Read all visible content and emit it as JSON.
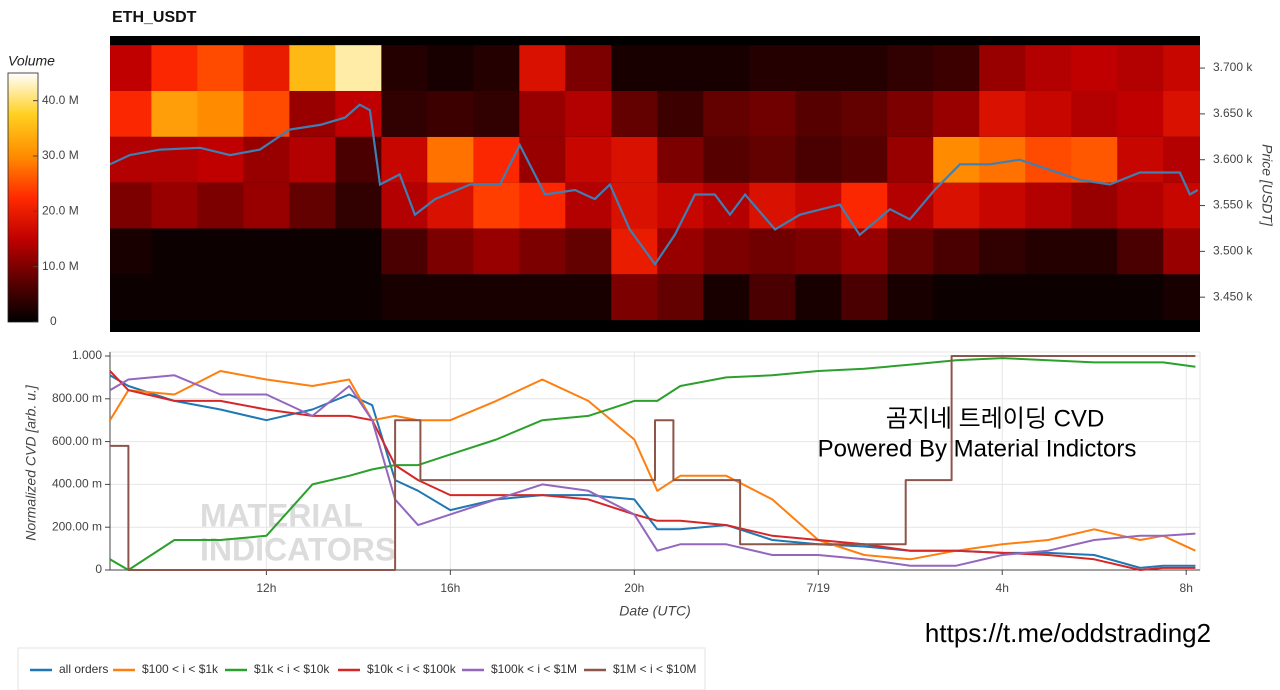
{
  "chart_data": [
    {
      "type": "heatmap",
      "title": "ETH_USDT",
      "y_label": "Price [USDT]",
      "colorbar_label": "Volume",
      "xlim": [
        8.6,
        32.3
      ],
      "ylim": [
        3412,
        3735
      ],
      "yticks": [
        {
          "value": 3450,
          "label": "3.450 k"
        },
        {
          "value": 3500,
          "label": "3.500 k"
        },
        {
          "value": 3550,
          "label": "3.550 k"
        },
        {
          "value": 3600,
          "label": "3.600 k"
        },
        {
          "value": 3650,
          "label": "3.650 k"
        },
        {
          "value": 3700,
          "label": "3.700 k"
        }
      ],
      "x_edges": [
        8.6,
        9.5,
        10.5,
        11.5,
        12.5,
        13.5,
        14.5,
        15.5,
        16.5,
        17.5,
        18.5,
        19.5,
        20.5,
        21.5,
        22.5,
        23.5,
        24.5,
        25.5,
        26.5,
        27.5,
        28.5,
        29.5,
        30.5,
        31.5,
        32.3
      ],
      "y_edges": [
        3425,
        3475,
        3525,
        3575,
        3625,
        3675,
        3725
      ],
      "z": [
        [
          1000000.0,
          1000000.0,
          1000000.0,
          1000000.0,
          1000000.0,
          1000000.0,
          2000000.0,
          2000000.0,
          2000000.0,
          2000000.0,
          2000000.0,
          10000000.0,
          8000000.0,
          2000000.0,
          6000000.0,
          2000000.0,
          6000000.0,
          2000000.0,
          1000000.0,
          1000000.0,
          1000000.0,
          1000000.0,
          1000000.0,
          2000000.0
        ],
        [
          2000000.0,
          1000000.0,
          1000000.0,
          1000000.0,
          1000000.0,
          1000000.0,
          6000000.0,
          10000000.0,
          12000000.0,
          10000000.0,
          8000000.0,
          20000000.0,
          12000000.0,
          10000000.0,
          9000000.0,
          10000000.0,
          12000000.0,
          8000000.0,
          6000000.0,
          4000000.0,
          3000000.0,
          3000000.0,
          6000000.0,
          12000000.0
        ],
        [
          10000000.0,
          12000000.0,
          10000000.0,
          12000000.0,
          8000000.0,
          4000000.0,
          14000000.0,
          18000000.0,
          24000000.0,
          22000000.0,
          14000000.0,
          18000000.0,
          16000000.0,
          14000000.0,
          18000000.0,
          16000000.0,
          22000000.0,
          14000000.0,
          18000000.0,
          16000000.0,
          14000000.0,
          12000000.0,
          14000000.0,
          16000000.0
        ],
        [
          14000000.0,
          14000000.0,
          15000000.0,
          12000000.0,
          14000000.0,
          6000000.0,
          16000000.0,
          28000000.0,
          22000000.0,
          12000000.0,
          16000000.0,
          18000000.0,
          10000000.0,
          7000000.0,
          8000000.0,
          6000000.0,
          7000000.0,
          12000000.0,
          30000000.0,
          28000000.0,
          25000000.0,
          26000000.0,
          16000000.0,
          14000000.0
        ],
        [
          22000000.0,
          32000000.0,
          30000000.0,
          25000000.0,
          12000000.0,
          15000000.0,
          4000000.0,
          5000000.0,
          4000000.0,
          12000000.0,
          14000000.0,
          8000000.0,
          5000000.0,
          8000000.0,
          9000000.0,
          7000000.0,
          8000000.0,
          10000000.0,
          12000000.0,
          18000000.0,
          16000000.0,
          14000000.0,
          15000000.0,
          18000000.0
        ],
        [
          15000000.0,
          22000000.0,
          25000000.0,
          20000000.0,
          35000000.0,
          42000000.0,
          3000000.0,
          2000000.0,
          3000000.0,
          18000000.0,
          10000000.0,
          2000000.0,
          2000000.0,
          2000000.0,
          3000000.0,
          3000000.0,
          3000000.0,
          4000000.0,
          5000000.0,
          12000000.0,
          14000000.0,
          15000000.0,
          14000000.0,
          16000000.0
        ]
      ],
      "colormap": [
        "#000000",
        "#5c0000",
        "#c00000",
        "#ff2a00",
        "#ff8c00",
        "#ffd020",
        "#ffffff"
      ],
      "clim": [
        0,
        45000000.0
      ],
      "colorbar_ticks": [
        0,
        {
          "value": 10000000.0,
          "label": "10.0 M"
        },
        {
          "value": 20000000.0,
          "label": "20.0 M"
        },
        {
          "value": 30000000.0,
          "label": "30.0 M"
        },
        {
          "value": 40000000.0,
          "label": "40.0 M"
        }
      ],
      "price_line": {
        "color": "#3f7fb4",
        "x": [
          8.6,
          9.03,
          9.69,
          10.56,
          11.21,
          11.86,
          12.51,
          13.17,
          13.71,
          14.03,
          14.25,
          14.47,
          14.9,
          15.23,
          15.67,
          16.43,
          17.08,
          17.51,
          18.06,
          18.71,
          19.14,
          19.47,
          19.9,
          20.45,
          20.88,
          21.32,
          21.75,
          22.08,
          22.41,
          23.06,
          23.6,
          24.47,
          24.9,
          25.56,
          25.99,
          26.53,
          27.08,
          27.73,
          28.38,
          29.03,
          29.69,
          30.34,
          30.99,
          31.86,
          32.08,
          32.25
        ],
        "values": [
          3595,
          3605,
          3611,
          3613,
          3605,
          3611,
          3633,
          3638,
          3646,
          3660,
          3654,
          3573,
          3584,
          3540,
          3557,
          3573,
          3573,
          3616,
          3562,
          3567,
          3557,
          3573,
          3524,
          3486,
          3518,
          3562,
          3562,
          3540,
          3562,
          3524,
          3540,
          3551,
          3518,
          3546,
          3535,
          3567,
          3595,
          3595,
          3600,
          3589,
          3578,
          3573,
          3586,
          3586,
          3562,
          3567
        ]
      }
    },
    {
      "type": "line",
      "x_label": "Date (UTC)",
      "y_label": "Normalized CVD [arb. u.]",
      "xlim": [
        8.6,
        32.3
      ],
      "ylim": [
        0,
        1
      ],
      "grid": true,
      "xticks": [
        {
          "value": 12,
          "label": "12h"
        },
        {
          "value": 16,
          "label": "16h"
        },
        {
          "value": 20,
          "label": "20h"
        },
        {
          "value": 24,
          "label": "7/19"
        },
        {
          "value": 28,
          "label": "4h"
        },
        {
          "value": 32,
          "label": "8h"
        }
      ],
      "yticks": [
        0,
        {
          "value": 0.2,
          "label": "200.00 m"
        },
        {
          "value": 0.4,
          "label": "400.00 m"
        },
        {
          "value": 0.6,
          "label": "600.00 m"
        },
        {
          "value": 0.8,
          "label": "800.00 m"
        },
        {
          "value": 1,
          "label": "1.000"
        }
      ],
      "series": [
        {
          "name": "all orders",
          "color": "#1f77b4",
          "x": [
            8.6,
            9,
            10,
            11,
            12,
            13,
            13.8,
            14.3,
            14.8,
            15.3,
            16,
            17,
            18,
            19,
            20,
            20.5,
            21,
            22,
            23,
            24,
            25,
            26,
            27,
            28,
            29,
            30,
            31,
            31.5,
            32.2
          ],
          "values": [
            0.91,
            0.86,
            0.79,
            0.75,
            0.7,
            0.75,
            0.82,
            0.77,
            0.42,
            0.37,
            0.28,
            0.33,
            0.35,
            0.35,
            0.33,
            0.19,
            0.19,
            0.21,
            0.14,
            0.12,
            0.11,
            0.09,
            0.09,
            0.08,
            0.08,
            0.07,
            0.01,
            0.02,
            0.02
          ]
        },
        {
          "name": "$100 < i < $1k",
          "color": "#ff7f0e",
          "x": [
            8.6,
            9,
            10,
            11,
            12,
            13,
            13.8,
            14.3,
            14.8,
            15.3,
            16,
            17,
            18,
            19,
            20,
            20.5,
            21,
            22,
            23,
            24,
            25,
            26,
            27,
            28,
            29,
            30,
            31,
            31.5,
            32.2
          ],
          "values": [
            0.7,
            0.84,
            0.82,
            0.93,
            0.89,
            0.86,
            0.89,
            0.7,
            0.72,
            0.7,
            0.7,
            0.79,
            0.89,
            0.79,
            0.61,
            0.37,
            0.44,
            0.44,
            0.33,
            0.14,
            0.07,
            0.05,
            0.09,
            0.12,
            0.14,
            0.19,
            0.14,
            0.16,
            0.09
          ]
        },
        {
          "name": "$1k < i < $10k",
          "color": "#2ca02c",
          "x": [
            8.6,
            9,
            10,
            11,
            12,
            13,
            13.8,
            14.3,
            14.8,
            15.3,
            16,
            17,
            18,
            19,
            20,
            20.5,
            21,
            22,
            23,
            24,
            25,
            26,
            27,
            28,
            29,
            30,
            31,
            31.5,
            32.2
          ],
          "values": [
            0.05,
            0,
            0.14,
            0.14,
            0.16,
            0.4,
            0.44,
            0.47,
            0.49,
            0.49,
            0.54,
            0.61,
            0.7,
            0.72,
            0.79,
            0.79,
            0.86,
            0.9,
            0.91,
            0.93,
            0.94,
            0.96,
            0.98,
            0.99,
            0.98,
            0.97,
            0.97,
            0.97,
            0.95
          ]
        },
        {
          "name": "$10k < i < $100k",
          "color": "#d62728",
          "x": [
            8.6,
            9,
            10,
            11,
            12,
            13,
            13.8,
            14.3,
            14.8,
            15.3,
            16,
            17,
            18,
            19,
            20,
            20.5,
            21,
            22,
            23,
            24,
            25,
            26,
            27,
            28,
            29,
            30,
            31,
            31.5,
            32.2
          ],
          "values": [
            0.93,
            0.84,
            0.79,
            0.79,
            0.75,
            0.72,
            0.72,
            0.7,
            0.49,
            0.42,
            0.35,
            0.35,
            0.35,
            0.33,
            0.26,
            0.23,
            0.23,
            0.21,
            0.16,
            0.14,
            0.12,
            0.09,
            0.09,
            0.08,
            0.07,
            0.05,
            0,
            0.01,
            0.01
          ]
        },
        {
          "name": "$100k < i < $1M",
          "color": "#9467bd",
          "x": [
            8.6,
            9,
            10,
            11,
            12,
            13,
            13.8,
            14.3,
            14.8,
            15.3,
            16,
            17,
            18,
            19,
            20,
            20.5,
            21,
            22,
            23,
            24,
            25,
            26,
            27,
            28,
            29,
            30,
            31,
            31.5,
            32.2
          ],
          "values": [
            0.84,
            0.89,
            0.91,
            0.82,
            0.82,
            0.72,
            0.86,
            0.7,
            0.33,
            0.21,
            0.26,
            0.33,
            0.4,
            0.37,
            0.26,
            0.09,
            0.12,
            0.12,
            0.07,
            0.07,
            0.05,
            0.02,
            0.02,
            0.07,
            0.09,
            0.14,
            0.16,
            0.16,
            0.17
          ]
        },
        {
          "name": "$1M < i < $10M",
          "color": "#8c564b",
          "x": [
            8.6,
            9,
            9,
            14.8,
            14.8,
            15.35,
            15.35,
            20.45,
            20.45,
            20.85,
            20.85,
            22.3,
            22.3,
            25.9,
            25.9,
            26.9,
            26.9,
            32.2
          ],
          "values": [
            0.58,
            0.58,
            0,
            0,
            0.7,
            0.7,
            0.42,
            0.42,
            0.7,
            0.7,
            0.42,
            0.42,
            0.12,
            0.12,
            0.42,
            0.42,
            1,
            1
          ]
        }
      ],
      "annotations": [
        "곰지네 트레이딩 CVD",
        "Powered By Material Indictors",
        "https://t.me/oddstrading2"
      ],
      "watermark": [
        "MATERIAL",
        "INDICATORS"
      ]
    }
  ]
}
